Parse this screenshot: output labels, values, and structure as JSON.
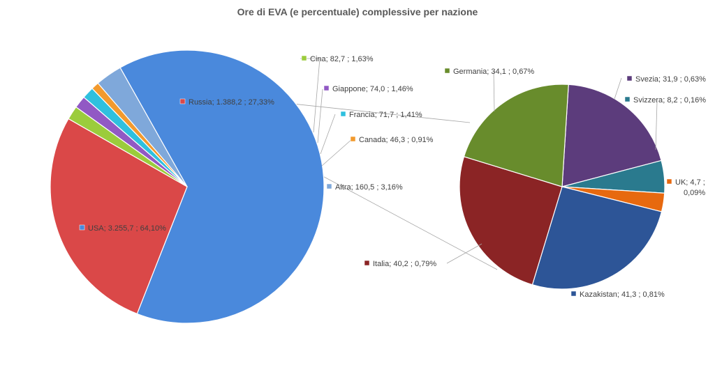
{
  "chart_data": {
    "type": "pie",
    "title": "Ore di EVA (e percentuale) complessive per nazione",
    "main_pie": {
      "slices": [
        {
          "name": "USA",
          "value_label": "3.255,7",
          "percent_label": "64,10%",
          "value": 3255.7,
          "color": "#4A89DC"
        },
        {
          "name": "Russia",
          "value_label": "1.388,2",
          "percent_label": "27,33%",
          "value": 1388.2,
          "color": "#DA4848"
        },
        {
          "name": "Cina",
          "value_label": "82,7",
          "percent_label": "1,63%",
          "value": 82.7,
          "color": "#9BCC3C"
        },
        {
          "name": "Giappone",
          "value_label": "74,0",
          "percent_label": "1,46%",
          "value": 74.0,
          "color": "#9159C4"
        },
        {
          "name": "Francia",
          "value_label": "71,7",
          "percent_label": "1,41%",
          "value": 71.7,
          "color": "#2FC0DE"
        },
        {
          "name": "Canada",
          "value_label": "46,3",
          "percent_label": "0,91%",
          "value": 46.3,
          "color": "#F29A2E"
        },
        {
          "name": "Altra",
          "value_label": "160,5",
          "percent_label": "3,16%",
          "value": 160.5,
          "color": "#7FA8DA"
        }
      ]
    },
    "secondary_pie": {
      "slices": [
        {
          "name": "Svezia",
          "value_label": "31,9",
          "percent_label": "0,63%",
          "value": 31.9,
          "color": "#5C3C7C"
        },
        {
          "name": "Svizzera",
          "value_label": "8,2",
          "percent_label": "0,16%",
          "value": 8.2,
          "color": "#2A7A8E"
        },
        {
          "name": "UK",
          "value_label": "4,7",
          "percent_label": "0,09%",
          "value": 4.7,
          "color": "#E7690F"
        },
        {
          "name": "Kazakistan",
          "value_label": "41,3",
          "percent_label": "0,81%",
          "value": 41.3,
          "color": "#2D5597"
        },
        {
          "name": "Italia",
          "value_label": "40,2",
          "percent_label": "0,79%",
          "value": 40.2,
          "color": "#8B2425"
        },
        {
          "name": "Germania",
          "value_label": "34,1",
          "percent_label": "0,67%",
          "value": 34.1,
          "color": "#688C2C"
        }
      ]
    },
    "legend": "none"
  }
}
